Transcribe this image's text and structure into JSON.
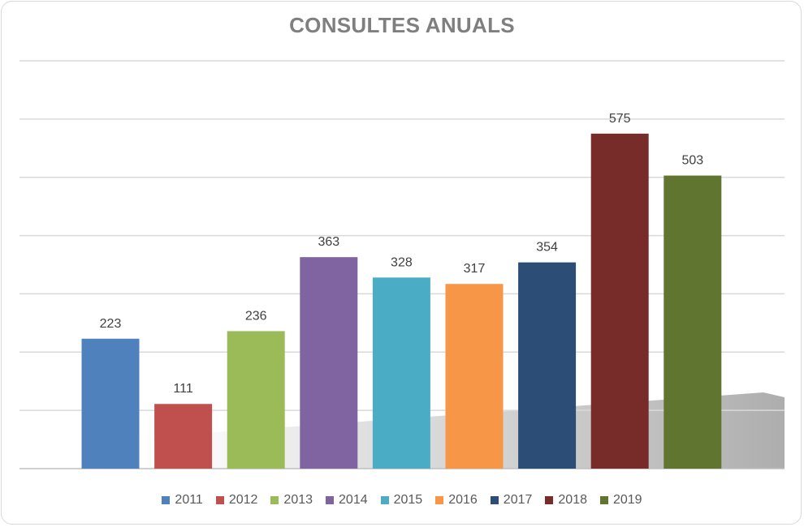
{
  "chart_data": {
    "type": "bar",
    "title": "CONSULTES ANUALS",
    "xlabel": "",
    "ylabel": "",
    "ylim": [
      0,
      700
    ],
    "grid": true,
    "legend_position": "bottom",
    "show_axis_labels": false,
    "categories": [
      "2011",
      "2012",
      "2013",
      "2014",
      "2015",
      "2016",
      "2017",
      "2018",
      "2019"
    ],
    "values": [
      223,
      111,
      236,
      363,
      328,
      317,
      354,
      575,
      503
    ],
    "colors": [
      "#4f81bd",
      "#c0504d",
      "#9bbb59",
      "#8064a2",
      "#4bacc6",
      "#f79646",
      "#2c4d75",
      "#772c2a",
      "#5f7530"
    ],
    "series": [
      {
        "name": "2011",
        "value": 223
      },
      {
        "name": "2012",
        "value": 111
      },
      {
        "name": "2013",
        "value": 236
      },
      {
        "name": "2014",
        "value": 363
      },
      {
        "name": "2015",
        "value": 328
      },
      {
        "name": "2016",
        "value": 317
      },
      {
        "name": "2017",
        "value": 354
      },
      {
        "name": "2018",
        "value": 575
      },
      {
        "name": "2019",
        "value": 503
      }
    ]
  }
}
